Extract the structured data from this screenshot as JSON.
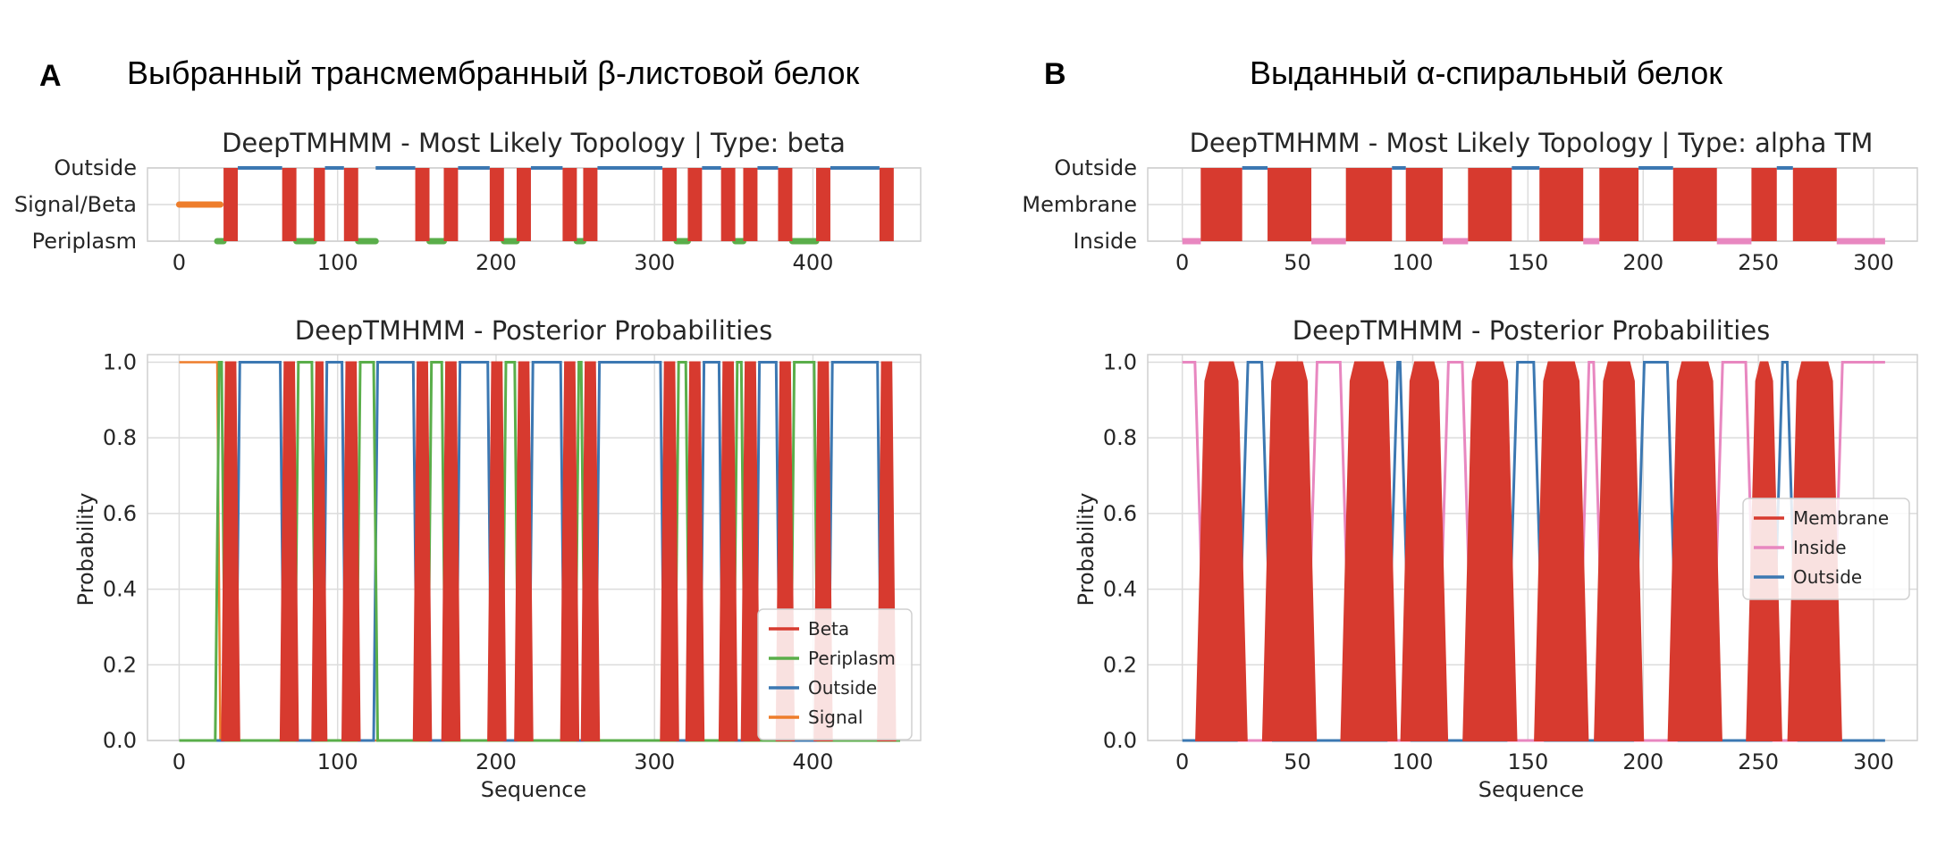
{
  "panels": [
    {
      "letter": "A",
      "title": "Выбранный трансмембранный β-листовой белок",
      "topology_title": "DeepTMHMM - Most Likely Topology | Type: beta",
      "posterior_title": "DeepTMHMM - Posterior Probabilities",
      "xlabel": "Sequence",
      "ylabel": "Probability"
    },
    {
      "letter": "B",
      "title": "Выданный α-спиральный белок",
      "topology_title": "DeepTMHMM - Most Likely Topology | Type: alpha TM",
      "posterior_title": "DeepTMHMM - Posterior Probabilities",
      "xlabel": "Sequence",
      "ylabel": "Probability"
    }
  ],
  "chart_data": [
    {
      "type": "line",
      "subtype": "topology-track",
      "title": "DeepTMHMM - Most Likely Topology | Type: beta",
      "y_categories": [
        "Outside",
        "Signal/Beta",
        "Periplasm"
      ],
      "xlim": [
        -20,
        468
      ],
      "x_ticks": [
        0,
        100,
        200,
        300,
        400
      ],
      "grid": true,
      "colors": {
        "Signal": "#ee7d2b",
        "Beta": "#d73a2f",
        "Periplasm": "#5aae4a",
        "Outside": "#3c78b2"
      },
      "signal_segment": [
        0,
        26
      ],
      "beta_strands": [
        [
          28,
          37
        ],
        [
          65,
          74
        ],
        [
          85,
          92
        ],
        [
          104,
          113
        ],
        [
          149,
          158
        ],
        [
          167,
          176
        ],
        [
          196,
          205
        ],
        [
          213,
          222
        ],
        [
          242,
          251
        ],
        [
          255,
          264
        ],
        [
          305,
          314
        ],
        [
          321,
          330
        ],
        [
          342,
          351
        ],
        [
          356,
          365
        ],
        [
          378,
          387
        ],
        [
          402,
          411
        ],
        [
          442,
          451
        ]
      ],
      "periplasm_segments": [
        [
          24,
          28
        ],
        [
          74,
          85
        ],
        [
          113,
          124
        ],
        [
          158,
          167
        ],
        [
          205,
          213
        ],
        [
          251,
          255
        ],
        [
          314,
          321
        ],
        [
          351,
          356
        ],
        [
          387,
          402
        ]
      ],
      "outside_segments": [
        [
          37,
          65
        ],
        [
          92,
          104
        ],
        [
          124,
          149
        ],
        [
          176,
          196
        ],
        [
          222,
          242
        ],
        [
          264,
          305
        ],
        [
          330,
          342
        ],
        [
          365,
          378
        ],
        [
          411,
          442
        ]
      ]
    },
    {
      "type": "line",
      "subtype": "posterior",
      "title": "DeepTMHMM - Posterior Probabilities",
      "xlabel": "Sequence",
      "ylabel": "Probability",
      "xlim": [
        -20,
        468
      ],
      "ylim": [
        0,
        1.02
      ],
      "x_ticks": [
        0,
        100,
        200,
        300,
        400
      ],
      "y_ticks": [
        0.0,
        0.2,
        0.4,
        0.6,
        0.8,
        1.0
      ],
      "y_tick_labels": [
        "0.0",
        "0.2",
        "0.4",
        "0.6",
        "0.8",
        "1.0"
      ],
      "grid": true,
      "legend_position": "lower-right",
      "series": [
        {
          "name": "Beta",
          "color": "#d73a2f"
        },
        {
          "name": "Periplasm",
          "color": "#5aae4a"
        },
        {
          "name": "Outside",
          "color": "#3c78b2"
        },
        {
          "name": "Signal",
          "color": "#ee7d2b"
        }
      ]
    },
    {
      "type": "line",
      "subtype": "topology-track",
      "title": "DeepTMHMM - Most Likely Topology | Type: alpha TM",
      "y_categories": [
        "Outside",
        "Membrane",
        "Inside"
      ],
      "xlim": [
        -15,
        319
      ],
      "x_ticks": [
        0,
        50,
        100,
        150,
        200,
        250,
        300
      ],
      "grid": true,
      "colors": {
        "Membrane": "#d73a2f",
        "Inside": "#e887c0",
        "Outside": "#3c78b2"
      },
      "membrane_segments": [
        [
          8,
          26
        ],
        [
          37,
          56
        ],
        [
          71,
          91
        ],
        [
          97,
          113
        ],
        [
          124,
          143
        ],
        [
          155,
          174
        ],
        [
          181,
          198
        ],
        [
          213,
          232
        ],
        [
          247,
          258
        ],
        [
          265,
          284
        ]
      ],
      "inside_segments": [
        [
          0,
          8
        ],
        [
          56,
          71
        ],
        [
          113,
          124
        ],
        [
          174,
          181
        ],
        [
          232,
          247
        ],
        [
          284,
          305
        ]
      ],
      "outside_segments": [
        [
          26,
          37
        ],
        [
          91,
          97
        ],
        [
          143,
          155
        ],
        [
          198,
          213
        ],
        [
          258,
          265
        ]
      ]
    },
    {
      "type": "line",
      "subtype": "posterior",
      "title": "DeepTMHMM - Posterior Probabilities",
      "xlabel": "Sequence",
      "ylabel": "Probability",
      "xlim": [
        -15,
        319
      ],
      "ylim": [
        0,
        1.02
      ],
      "x_ticks": [
        0,
        50,
        100,
        150,
        200,
        250,
        300
      ],
      "y_ticks": [
        0.0,
        0.2,
        0.4,
        0.6,
        0.8,
        1.0
      ],
      "y_tick_labels": [
        "0.0",
        "0.2",
        "0.4",
        "0.6",
        "0.8",
        "1.0"
      ],
      "grid": true,
      "legend_position": "center-right",
      "series": [
        {
          "name": "Membrane",
          "color": "#d73a2f"
        },
        {
          "name": "Inside",
          "color": "#e887c0"
        },
        {
          "name": "Outside",
          "color": "#3c78b2"
        }
      ]
    }
  ]
}
